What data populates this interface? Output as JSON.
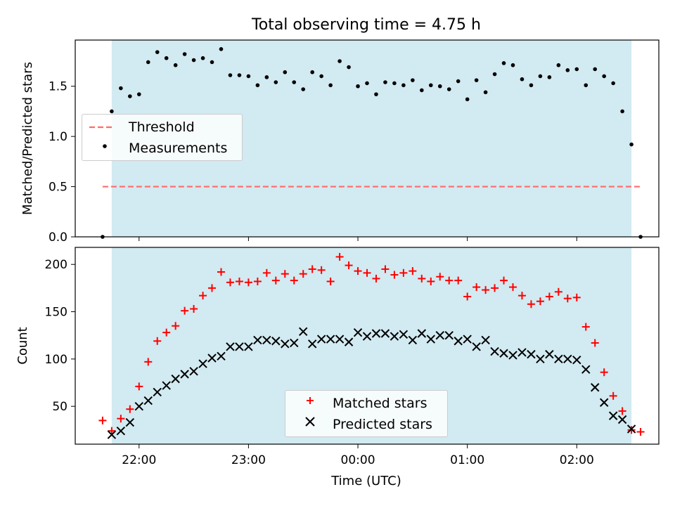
{
  "colors": {
    "shade": "#add8e6",
    "threshold": "#ff6b6b",
    "measurements": "#000000",
    "matched": "#ff0000",
    "predicted": "#000000"
  },
  "chart_data": [
    {
      "type": "scatter",
      "title": "Total observing time = 4.75 h",
      "xlabel": "",
      "ylabel": "Matched/Predicted stars",
      "xlim": [
        "21:25",
        "02:45"
      ],
      "ylim": [
        0,
        1.96
      ],
      "yticks": [
        "0.0",
        "0.5",
        "1.0",
        "1.5"
      ],
      "grid": false,
      "legend_position": "center-left",
      "observing_window": [
        "21:45",
        "02:30"
      ],
      "series": [
        {
          "name": "Threshold",
          "kind": "dashed-line",
          "color": "#ff6b6b",
          "x": [
            "21:40",
            "02:35"
          ],
          "y": [
            0.5,
            0.5
          ]
        },
        {
          "name": "Measurements",
          "kind": "points",
          "color": "#000000",
          "x": [
            "21:40",
            "21:45",
            "21:50",
            "21:55",
            "22:00",
            "22:05",
            "22:10",
            "22:15",
            "22:20",
            "22:25",
            "22:30",
            "22:35",
            "22:40",
            "22:45",
            "22:50",
            "22:55",
            "23:00",
            "23:05",
            "23:10",
            "23:15",
            "23:20",
            "23:25",
            "23:30",
            "23:35",
            "23:40",
            "23:45",
            "23:50",
            "23:55",
            "00:00",
            "00:05",
            "00:10",
            "00:15",
            "00:20",
            "00:25",
            "00:30",
            "00:35",
            "00:40",
            "00:45",
            "00:50",
            "00:55",
            "01:00",
            "01:05",
            "01:10",
            "01:15",
            "01:20",
            "01:25",
            "01:30",
            "01:35",
            "01:40",
            "01:45",
            "01:50",
            "01:55",
            "02:00",
            "02:05",
            "02:10",
            "02:15",
            "02:20",
            "02:25",
            "02:30",
            "02:35"
          ],
          "y": [
            0.0,
            1.25,
            1.48,
            1.4,
            1.42,
            1.74,
            1.84,
            1.78,
            1.71,
            1.82,
            1.76,
            1.78,
            1.74,
            1.87,
            1.61,
            1.61,
            1.6,
            1.51,
            1.59,
            1.54,
            1.64,
            1.54,
            1.47,
            1.64,
            1.6,
            1.51,
            1.75,
            1.69,
            1.5,
            1.53,
            1.42,
            1.54,
            1.53,
            1.51,
            1.56,
            1.46,
            1.51,
            1.5,
            1.47,
            1.55,
            1.37,
            1.56,
            1.44,
            1.62,
            1.73,
            1.71,
            1.57,
            1.51,
            1.6,
            1.59,
            1.71,
            1.66,
            1.67,
            1.51,
            1.67,
            1.6,
            1.53,
            1.25,
            0.92,
            0.0
          ]
        }
      ]
    },
    {
      "type": "scatter",
      "title": "",
      "xlabel": "Time (UTC)",
      "ylabel": "Count",
      "xlim": [
        "21:25",
        "02:45"
      ],
      "ylim": [
        10,
        218
      ],
      "xticks": [
        "22:00",
        "23:00",
        "00:00",
        "01:00",
        "02:00"
      ],
      "yticks": [
        "50",
        "100",
        "150",
        "200"
      ],
      "grid": false,
      "legend_position": "lower center",
      "observing_window": [
        "21:45",
        "02:30"
      ],
      "series": [
        {
          "name": "Matched stars",
          "marker": "plus",
          "color": "#ff0000",
          "x": [
            "21:40",
            "21:45",
            "21:50",
            "21:55",
            "22:00",
            "22:05",
            "22:10",
            "22:15",
            "22:20",
            "22:25",
            "22:30",
            "22:35",
            "22:40",
            "22:45",
            "22:50",
            "22:55",
            "23:00",
            "23:05",
            "23:10",
            "23:15",
            "23:20",
            "23:25",
            "23:30",
            "23:35",
            "23:40",
            "23:45",
            "23:50",
            "23:55",
            "00:00",
            "00:05",
            "00:10",
            "00:15",
            "00:20",
            "00:25",
            "00:30",
            "00:35",
            "00:40",
            "00:45",
            "00:50",
            "00:55",
            "01:00",
            "01:05",
            "01:10",
            "01:15",
            "01:20",
            "01:25",
            "01:30",
            "01:35",
            "01:40",
            "01:45",
            "01:50",
            "01:55",
            "02:00",
            "02:05",
            "02:10",
            "02:15",
            "02:20",
            "02:25",
            "02:30",
            "02:35"
          ],
          "y": [
            35,
            24,
            37,
            47,
            71,
            97,
            119,
            128,
            135,
            151,
            153,
            167,
            175,
            192,
            181,
            182,
            181,
            182,
            191,
            183,
            190,
            183,
            190,
            195,
            194,
            182,
            208,
            199,
            193,
            191,
            185,
            195,
            189,
            191,
            193,
            185,
            182,
            187,
            183,
            183,
            166,
            176,
            173,
            175,
            183,
            176,
            167,
            158,
            161,
            166,
            171,
            164,
            165,
            134,
            117,
            86,
            61,
            45,
            25,
            23
          ]
        },
        {
          "name": "Predicted stars",
          "marker": "cross",
          "color": "#000000",
          "x": [
            "21:45",
            "21:50",
            "21:55",
            "22:00",
            "22:05",
            "22:10",
            "22:15",
            "22:20",
            "22:25",
            "22:30",
            "22:35",
            "22:40",
            "22:45",
            "22:50",
            "22:55",
            "23:00",
            "23:05",
            "23:10",
            "23:15",
            "23:20",
            "23:25",
            "23:30",
            "23:35",
            "23:40",
            "23:45",
            "23:50",
            "23:55",
            "00:00",
            "00:05",
            "00:10",
            "00:15",
            "00:20",
            "00:25",
            "00:30",
            "00:35",
            "00:40",
            "00:45",
            "00:50",
            "00:55",
            "01:00",
            "01:05",
            "01:10",
            "01:15",
            "01:20",
            "01:25",
            "01:30",
            "01:35",
            "01:40",
            "01:45",
            "01:50",
            "01:55",
            "02:00",
            "02:05",
            "02:10",
            "02:15",
            "02:20",
            "02:25",
            "02:30"
          ],
          "y": [
            20,
            24,
            33,
            50,
            56,
            65,
            72,
            79,
            84,
            87,
            95,
            101,
            103,
            113,
            113,
            113,
            120,
            120,
            119,
            116,
            117,
            129,
            116,
            121,
            121,
            121,
            118,
            128,
            124,
            127,
            127,
            124,
            126,
            120,
            127,
            121,
            125,
            125,
            119,
            121,
            113,
            120,
            108,
            106,
            104,
            107,
            105,
            100,
            105,
            100,
            100,
            99,
            89,
            70,
            54,
            40,
            36,
            26
          ]
        }
      ]
    }
  ]
}
